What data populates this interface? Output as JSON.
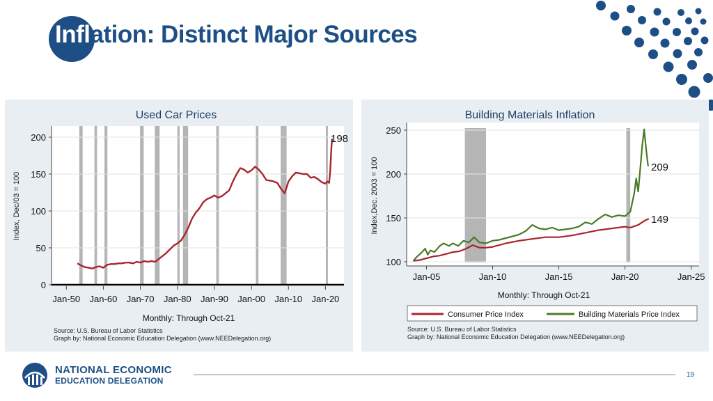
{
  "slide": {
    "title_part1": "Infl",
    "title_part2": "ation: Distinct Major Sources",
    "page_number": "19",
    "logo": {
      "line1": "NATIONAL ECONOMIC",
      "line2": "EDUCATION DELEGATION"
    }
  },
  "colors": {
    "brand": "#1d4f86",
    "red_series": "#a8242e",
    "green_series": "#4b7a26",
    "recession": "#b5b5b5"
  },
  "chart_data": [
    {
      "type": "line",
      "title": "Used Car Prices",
      "xlabel": "Monthly: Through Oct-21",
      "ylabel": "Index, Dec/03 = 100",
      "ylim": [
        0,
        200
      ],
      "y_ticks": [
        "0",
        "50",
        "100",
        "150",
        "200"
      ],
      "x_ticks": [
        "Jan-50",
        "Jan-60",
        "Jan-70",
        "Jan-80",
        "Jan-90",
        "Jan-00",
        "Jan-10",
        "Jan-20"
      ],
      "end_label": "198",
      "source": "Source: U.S. Bureau of Labor Statistics",
      "credit": "Graph by: National Economic Education Delegation (www.NEEDelegation.org)",
      "recessions": [
        [
          1953.5,
          1954.4
        ],
        [
          1957.6,
          1958.3
        ],
        [
          1960.3,
          1961.1
        ],
        [
          1969.9,
          1970.9
        ],
        [
          1973.9,
          1975.2
        ],
        [
          1980.0,
          1980.6
        ],
        [
          1981.5,
          1982.9
        ],
        [
          1990.5,
          1991.2
        ],
        [
          2001.2,
          2001.9
        ],
        [
          2007.9,
          2009.5
        ],
        [
          2020.1,
          2020.4
        ]
      ],
      "series": [
        {
          "x": [
            1953.0,
            1954.0,
            1955.0,
            1956.0,
            1957.0,
            1958.0,
            1959.0,
            1960.0,
            1961.0,
            1962.0,
            1963.0,
            1964.0,
            1965.0,
            1966.0,
            1967.0,
            1968.0,
            1969.0,
            1970.0,
            1971.0,
            1972.0,
            1973.0,
            1974.0,
            1975.0,
            1976.0,
            1977.0,
            1978.0,
            1979.0,
            1980.0,
            1981.0,
            1982.0,
            1983.0,
            1984.0,
            1985.0,
            1986.0,
            1987.0,
            1988.0,
            1989.0,
            1990.0,
            1991.0,
            1992.0,
            1993.0,
            1994.0,
            1995.0,
            1996.0,
            1997.0,
            1998.0,
            1999.0,
            2000.0,
            2001.0,
            2002.0,
            2003.0,
            2004.0,
            2005.0,
            2006.0,
            2007.0,
            2008.0,
            2009.0,
            2010.0,
            2011.0,
            2012.0,
            2013.0,
            2014.0,
            2015.0,
            2016.0,
            2017.0,
            2018.0,
            2019.0,
            2020.0,
            2020.5,
            2021.0,
            2021.3,
            2021.6,
            2021.8
          ],
          "values": [
            29,
            26,
            24,
            23,
            22,
            24,
            25,
            23,
            27,
            28,
            28,
            29,
            29,
            30,
            30,
            29,
            31,
            30,
            32,
            31,
            32,
            31,
            35,
            39,
            43,
            48,
            53,
            56,
            60,
            68,
            78,
            90,
            98,
            104,
            112,
            116,
            118,
            121,
            118,
            120,
            124,
            128,
            140,
            150,
            158,
            156,
            152,
            155,
            160,
            156,
            150,
            142,
            141,
            140,
            138,
            130,
            124,
            140,
            147,
            152,
            151,
            150,
            150,
            145,
            146,
            143,
            139,
            137,
            140,
            138,
            155,
            185,
            198
          ]
        }
      ]
    },
    {
      "type": "line",
      "title": "Building Materials Inflation",
      "xlabel": "Monthly: Through Oct-21",
      "ylabel": "Index,Dec. 2003 = 100",
      "ylim": [
        100,
        250
      ],
      "y_ticks": [
        "100",
        "150",
        "200",
        "250"
      ],
      "x_ticks": [
        "Jan-05",
        "Jan-10",
        "Jan-15",
        "Jan-20",
        "Jan-25"
      ],
      "source": "Source: U.S. Bureau of Labor Statistics",
      "credit": "Graph by: National Economic Education Delegation (www.NEEDelegation.org)",
      "end_labels": [
        "209",
        "149"
      ],
      "recessions": [
        [
          2007.9,
          2009.5
        ],
        [
          2020.1,
          2020.4
        ]
      ],
      "legend_position": "bottom",
      "series": [
        {
          "name": "Consumer Price Index",
          "x": [
            2004.0,
            2004.5,
            2005.0,
            2005.5,
            2006.0,
            2006.5,
            2007.0,
            2007.5,
            2008.0,
            2008.5,
            2009.0,
            2009.5,
            2010.0,
            2011.0,
            2012.0,
            2013.0,
            2014.0,
            2015.0,
            2016.0,
            2017.0,
            2018.0,
            2019.0,
            2020.0,
            2020.4,
            2021.0,
            2021.5,
            2021.8
          ],
          "values": [
            101,
            102,
            104,
            106,
            107,
            109,
            111,
            112,
            115,
            119,
            116,
            116,
            117,
            121,
            124,
            126,
            128,
            128,
            130,
            133,
            136,
            138,
            140,
            139,
            142,
            147,
            149
          ]
        },
        {
          "name": "Building Materials Price Index",
          "x": [
            2004.0,
            2004.3,
            2004.6,
            2004.9,
            2005.1,
            2005.3,
            2005.6,
            2006.0,
            2006.3,
            2006.7,
            2007.0,
            2007.4,
            2007.8,
            2008.2,
            2008.6,
            2009.0,
            2009.5,
            2010.0,
            2010.5,
            2011.0,
            2011.5,
            2012.0,
            2012.5,
            2013.0,
            2013.5,
            2014.0,
            2014.5,
            2015.0,
            2015.5,
            2016.0,
            2016.5,
            2017.0,
            2017.5,
            2018.0,
            2018.5,
            2019.0,
            2019.5,
            2020.0,
            2020.4,
            2020.7,
            2020.85,
            2021.0,
            2021.15,
            2021.3,
            2021.45,
            2021.6,
            2021.75
          ],
          "values": [
            101,
            106,
            110,
            115,
            108,
            113,
            111,
            118,
            121,
            118,
            121,
            118,
            124,
            122,
            128,
            122,
            121,
            124,
            125,
            127,
            129,
            131,
            135,
            142,
            138,
            137,
            139,
            136,
            137,
            138,
            140,
            145,
            143,
            149,
            154,
            151,
            153,
            152,
            157,
            178,
            195,
            180,
            205,
            232,
            251,
            228,
            209
          ]
        }
      ]
    }
  ]
}
